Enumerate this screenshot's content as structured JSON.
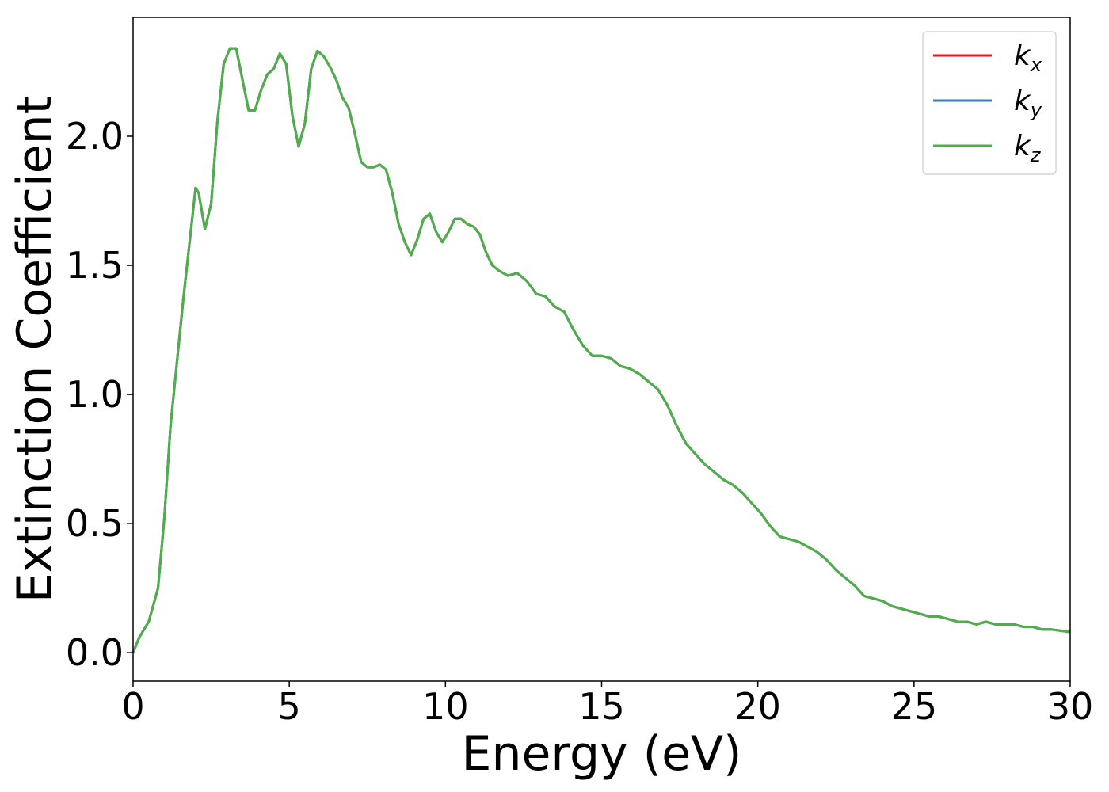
{
  "chart_data": {
    "type": "line",
    "title": "",
    "xlabel": "Energy (eV)",
    "ylabel": "Extinction Coefficient",
    "xlim": [
      0,
      30
    ],
    "ylim": [
      -0.11,
      2.46
    ],
    "xticks": [
      0,
      5,
      10,
      15,
      20,
      25,
      30
    ],
    "xtick_labels": [
      "0",
      "5",
      "10",
      "15",
      "20",
      "25",
      "30"
    ],
    "yticks": [
      0.0,
      0.5,
      1.0,
      1.5,
      2.0
    ],
    "ytick_labels": [
      "0.0",
      "0.5",
      "1.0",
      "1.5",
      "2.0"
    ],
    "grid": false,
    "legend_position": "top-right",
    "legend": [
      {
        "base": "k",
        "sub": "x",
        "color": "#e41a1c"
      },
      {
        "base": "k",
        "sub": "y",
        "color": "#377eb8"
      },
      {
        "base": "k",
        "sub": "z",
        "color": "#4daf4a"
      }
    ],
    "x": [
      0,
      0.2,
      0.5,
      0.8,
      1.0,
      1.2,
      1.4,
      1.6,
      1.8,
      2.0,
      2.1,
      2.3,
      2.5,
      2.7,
      2.9,
      3.1,
      3.3,
      3.5,
      3.7,
      3.9,
      4.1,
      4.3,
      4.5,
      4.7,
      4.9,
      5.1,
      5.3,
      5.5,
      5.7,
      5.9,
      6.1,
      6.3,
      6.5,
      6.7,
      6.9,
      7.1,
      7.3,
      7.5,
      7.7,
      7.9,
      8.1,
      8.3,
      8.5,
      8.7,
      8.9,
      9.1,
      9.3,
      9.5,
      9.7,
      9.9,
      10.1,
      10.3,
      10.5,
      10.7,
      10.9,
      11.1,
      11.3,
      11.5,
      11.7,
      12.0,
      12.3,
      12.6,
      12.9,
      13.2,
      13.5,
      13.8,
      14.1,
      14.4,
      14.7,
      15.0,
      15.3,
      15.6,
      15.9,
      16.2,
      16.5,
      16.8,
      17.1,
      17.4,
      17.7,
      18.0,
      18.3,
      18.6,
      18.9,
      19.2,
      19.5,
      19.8,
      20.1,
      20.4,
      20.7,
      21.0,
      21.3,
      21.6,
      21.9,
      22.2,
      22.5,
      22.8,
      23.1,
      23.4,
      23.7,
      24.0,
      24.3,
      24.6,
      24.9,
      25.2,
      25.5,
      25.8,
      26.1,
      26.4,
      26.7,
      27.0,
      27.3,
      27.6,
      27.9,
      28.2,
      28.5,
      28.8,
      29.1,
      29.4,
      29.7,
      30.0
    ],
    "series": [
      {
        "name": "k_x",
        "color": "#e41a1c",
        "values": [
          0,
          0.06,
          0.12,
          0.25,
          0.52,
          0.88,
          1.12,
          1.36,
          1.58,
          1.8,
          1.78,
          1.64,
          1.74,
          2.06,
          2.28,
          2.34,
          2.34,
          2.22,
          2.1,
          2.1,
          2.18,
          2.24,
          2.26,
          2.32,
          2.28,
          2.08,
          1.96,
          2.05,
          2.26,
          2.33,
          2.31,
          2.27,
          2.22,
          2.15,
          2.11,
          2.01,
          1.9,
          1.88,
          1.88,
          1.89,
          1.87,
          1.78,
          1.66,
          1.59,
          1.54,
          1.6,
          1.68,
          1.7,
          1.63,
          1.59,
          1.63,
          1.68,
          1.68,
          1.66,
          1.65,
          1.62,
          1.55,
          1.5,
          1.48,
          1.46,
          1.47,
          1.44,
          1.39,
          1.38,
          1.34,
          1.32,
          1.25,
          1.19,
          1.15,
          1.15,
          1.14,
          1.11,
          1.1,
          1.08,
          1.05,
          1.02,
          0.96,
          0.88,
          0.81,
          0.77,
          0.73,
          0.7,
          0.67,
          0.65,
          0.62,
          0.58,
          0.54,
          0.49,
          0.45,
          0.44,
          0.43,
          0.41,
          0.39,
          0.36,
          0.32,
          0.29,
          0.26,
          0.22,
          0.21,
          0.2,
          0.18,
          0.17,
          0.16,
          0.15,
          0.14,
          0.14,
          0.13,
          0.12,
          0.12,
          0.11,
          0.12,
          0.11,
          0.11,
          0.11,
          0.1,
          0.1,
          0.09,
          0.09,
          0.085,
          0.08
        ]
      },
      {
        "name": "k_y",
        "color": "#377eb8",
        "values": [
          0,
          0.06,
          0.12,
          0.25,
          0.52,
          0.88,
          1.12,
          1.36,
          1.58,
          1.8,
          1.78,
          1.64,
          1.74,
          2.06,
          2.28,
          2.34,
          2.34,
          2.22,
          2.1,
          2.1,
          2.18,
          2.24,
          2.26,
          2.32,
          2.28,
          2.08,
          1.96,
          2.05,
          2.26,
          2.33,
          2.31,
          2.27,
          2.22,
          2.15,
          2.11,
          2.01,
          1.9,
          1.88,
          1.88,
          1.89,
          1.87,
          1.78,
          1.66,
          1.59,
          1.54,
          1.6,
          1.68,
          1.7,
          1.63,
          1.59,
          1.63,
          1.68,
          1.68,
          1.66,
          1.65,
          1.62,
          1.55,
          1.5,
          1.48,
          1.46,
          1.47,
          1.44,
          1.39,
          1.38,
          1.34,
          1.32,
          1.25,
          1.19,
          1.15,
          1.15,
          1.14,
          1.11,
          1.1,
          1.08,
          1.05,
          1.02,
          0.96,
          0.88,
          0.81,
          0.77,
          0.73,
          0.7,
          0.67,
          0.65,
          0.62,
          0.58,
          0.54,
          0.49,
          0.45,
          0.44,
          0.43,
          0.41,
          0.39,
          0.36,
          0.32,
          0.29,
          0.26,
          0.22,
          0.21,
          0.2,
          0.18,
          0.17,
          0.16,
          0.15,
          0.14,
          0.14,
          0.13,
          0.12,
          0.12,
          0.11,
          0.12,
          0.11,
          0.11,
          0.11,
          0.1,
          0.1,
          0.09,
          0.09,
          0.085,
          0.08
        ]
      },
      {
        "name": "k_z",
        "color": "#4daf4a",
        "values": [
          0,
          0.06,
          0.12,
          0.25,
          0.52,
          0.88,
          1.12,
          1.36,
          1.58,
          1.8,
          1.78,
          1.64,
          1.74,
          2.06,
          2.28,
          2.34,
          2.34,
          2.22,
          2.1,
          2.1,
          2.18,
          2.24,
          2.26,
          2.32,
          2.28,
          2.08,
          1.96,
          2.05,
          2.26,
          2.33,
          2.31,
          2.27,
          2.22,
          2.15,
          2.11,
          2.01,
          1.9,
          1.88,
          1.88,
          1.89,
          1.87,
          1.78,
          1.66,
          1.59,
          1.54,
          1.6,
          1.68,
          1.7,
          1.63,
          1.59,
          1.63,
          1.68,
          1.68,
          1.66,
          1.65,
          1.62,
          1.55,
          1.5,
          1.48,
          1.46,
          1.47,
          1.44,
          1.39,
          1.38,
          1.34,
          1.32,
          1.25,
          1.19,
          1.15,
          1.15,
          1.14,
          1.11,
          1.1,
          1.08,
          1.05,
          1.02,
          0.96,
          0.88,
          0.81,
          0.77,
          0.73,
          0.7,
          0.67,
          0.65,
          0.62,
          0.58,
          0.54,
          0.49,
          0.45,
          0.44,
          0.43,
          0.41,
          0.39,
          0.36,
          0.32,
          0.29,
          0.26,
          0.22,
          0.21,
          0.2,
          0.18,
          0.17,
          0.16,
          0.15,
          0.14,
          0.14,
          0.13,
          0.12,
          0.12,
          0.11,
          0.12,
          0.11,
          0.11,
          0.11,
          0.1,
          0.1,
          0.09,
          0.09,
          0.085,
          0.08
        ]
      }
    ]
  }
}
